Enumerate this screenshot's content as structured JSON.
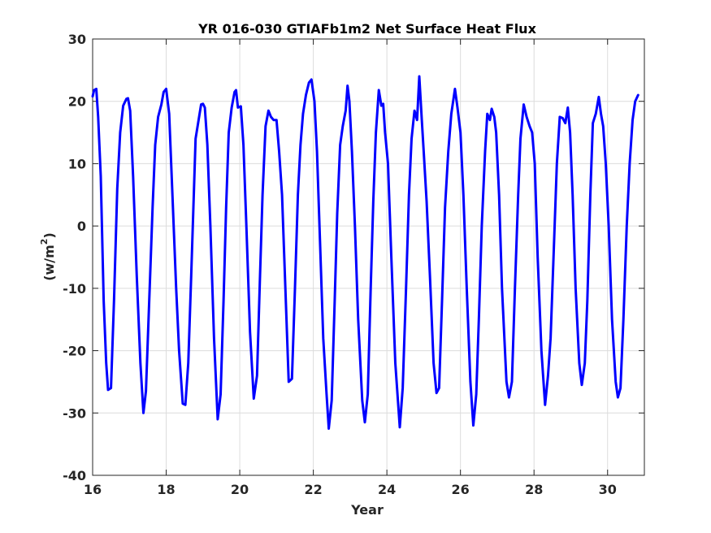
{
  "chart_data": {
    "type": "line",
    "title": "YR 016-030 GTIAFb1m2 Net Surface Heat Flux",
    "xlabel": "Year",
    "ylabel_base": "(w/m",
    "ylabel_sup": "2",
    "ylabel_close": ")",
    "xlim": [
      16,
      31
    ],
    "ylim": [
      -40,
      30
    ],
    "xticks": [
      16,
      18,
      20,
      22,
      24,
      26,
      28,
      30
    ],
    "yticks": [
      -40,
      -30,
      -20,
      -10,
      0,
      10,
      20,
      30
    ],
    "grid": true,
    "line_color": "#0000ff",
    "series": [
      {
        "points": [
          [
            16.0,
            20.8
          ],
          [
            16.04,
            21.8
          ],
          [
            16.1,
            22.0
          ],
          [
            16.15,
            17.5
          ],
          [
            16.22,
            8.0
          ],
          [
            16.3,
            -12.0
          ],
          [
            16.37,
            -22.0
          ],
          [
            16.42,
            -26.3
          ],
          [
            16.5,
            -26.0
          ],
          [
            16.58,
            -12.0
          ],
          [
            16.67,
            6.0
          ],
          [
            16.75,
            15.0
          ],
          [
            16.83,
            19.3
          ],
          [
            16.92,
            20.4
          ],
          [
            16.96,
            20.5
          ],
          [
            17.02,
            18.5
          ],
          [
            17.1,
            8.0
          ],
          [
            17.2,
            -8.0
          ],
          [
            17.3,
            -22.0
          ],
          [
            17.38,
            -30.0
          ],
          [
            17.45,
            -26.5
          ],
          [
            17.55,
            -10.0
          ],
          [
            17.63,
            3.0
          ],
          [
            17.7,
            13.0
          ],
          [
            17.78,
            17.5
          ],
          [
            17.87,
            19.5
          ],
          [
            17.93,
            21.5
          ],
          [
            18.0,
            22.0
          ],
          [
            18.08,
            18.0
          ],
          [
            18.17,
            5.0
          ],
          [
            18.27,
            -10.0
          ],
          [
            18.35,
            -20.0
          ],
          [
            18.45,
            -28.5
          ],
          [
            18.52,
            -28.7
          ],
          [
            18.6,
            -22.0
          ],
          [
            18.68,
            -8.0
          ],
          [
            18.75,
            5.0
          ],
          [
            18.8,
            14.0
          ],
          [
            18.88,
            17.0
          ],
          [
            18.95,
            19.5
          ],
          [
            19.0,
            19.6
          ],
          [
            19.05,
            19.0
          ],
          [
            19.12,
            13.0
          ],
          [
            19.2,
            0.0
          ],
          [
            19.3,
            -18.0
          ],
          [
            19.4,
            -31.0
          ],
          [
            19.48,
            -27.0
          ],
          [
            19.56,
            -12.0
          ],
          [
            19.63,
            3.0
          ],
          [
            19.7,
            15.0
          ],
          [
            19.78,
            19.0
          ],
          [
            19.86,
            21.5
          ],
          [
            19.9,
            21.8
          ],
          [
            19.95,
            19.0
          ],
          [
            20.03,
            19.2
          ],
          [
            20.1,
            13.0
          ],
          [
            20.18,
            0.0
          ],
          [
            20.28,
            -17.0
          ],
          [
            20.38,
            -27.7
          ],
          [
            20.47,
            -24.0
          ],
          [
            20.55,
            -8.0
          ],
          [
            20.62,
            5.0
          ],
          [
            20.7,
            16.0
          ],
          [
            20.78,
            18.5
          ],
          [
            20.85,
            17.5
          ],
          [
            20.92,
            17.0
          ],
          [
            21.0,
            17.0
          ],
          [
            21.07,
            12.0
          ],
          [
            21.15,
            5.0
          ],
          [
            21.24,
            -10.0
          ],
          [
            21.33,
            -25.0
          ],
          [
            21.42,
            -24.5
          ],
          [
            21.5,
            -10.0
          ],
          [
            21.58,
            5.0
          ],
          [
            21.65,
            13.0
          ],
          [
            21.72,
            18.0
          ],
          [
            21.8,
            21.0
          ],
          [
            21.88,
            23.0
          ],
          [
            21.95,
            23.5
          ],
          [
            22.03,
            20.0
          ],
          [
            22.1,
            12.0
          ],
          [
            22.18,
            -2.0
          ],
          [
            22.27,
            -18.0
          ],
          [
            22.36,
            -27.0
          ],
          [
            22.42,
            -32.5
          ],
          [
            22.5,
            -28.0
          ],
          [
            22.58,
            -12.0
          ],
          [
            22.65,
            2.0
          ],
          [
            22.73,
            13.0
          ],
          [
            22.8,
            16.0
          ],
          [
            22.88,
            18.5
          ],
          [
            22.93,
            22.5
          ],
          [
            22.98,
            20.0
          ],
          [
            23.05,
            12.0
          ],
          [
            23.13,
            0.0
          ],
          [
            23.22,
            -15.0
          ],
          [
            23.33,
            -28.0
          ],
          [
            23.4,
            -31.5
          ],
          [
            23.48,
            -27.0
          ],
          [
            23.56,
            -10.0
          ],
          [
            23.63,
            4.0
          ],
          [
            23.7,
            15.0
          ],
          [
            23.78,
            21.8
          ],
          [
            23.85,
            19.3
          ],
          [
            23.9,
            19.6
          ],
          [
            23.95,
            15.0
          ],
          [
            24.03,
            10.0
          ],
          [
            24.12,
            -5.0
          ],
          [
            24.23,
            -22.0
          ],
          [
            24.35,
            -32.3
          ],
          [
            24.43,
            -26.0
          ],
          [
            24.52,
            -10.0
          ],
          [
            24.6,
            5.0
          ],
          [
            24.67,
            14.0
          ],
          [
            24.75,
            18.5
          ],
          [
            24.82,
            17.0
          ],
          [
            24.88,
            24.0
          ],
          [
            24.95,
            17.0
          ],
          [
            25.0,
            12.0
          ],
          [
            25.08,
            4.0
          ],
          [
            25.17,
            -8.0
          ],
          [
            25.27,
            -22.0
          ],
          [
            25.35,
            -26.8
          ],
          [
            25.42,
            -26.0
          ],
          [
            25.5,
            -12.0
          ],
          [
            25.58,
            3.0
          ],
          [
            25.67,
            12.0
          ],
          [
            25.75,
            18.0
          ],
          [
            25.85,
            22.0
          ],
          [
            25.92,
            19.0
          ],
          [
            26.0,
            15.0
          ],
          [
            26.08,
            5.0
          ],
          [
            26.17,
            -10.0
          ],
          [
            26.27,
            -25.0
          ],
          [
            26.35,
            -32.0
          ],
          [
            26.43,
            -27.0
          ],
          [
            26.5,
            -15.0
          ],
          [
            26.58,
            0.0
          ],
          [
            26.67,
            12.0
          ],
          [
            26.73,
            18.0
          ],
          [
            26.8,
            17.0
          ],
          [
            26.85,
            18.8
          ],
          [
            26.92,
            17.5
          ],
          [
            26.97,
            15.0
          ],
          [
            27.05,
            5.0
          ],
          [
            27.13,
            -10.0
          ],
          [
            27.25,
            -25.0
          ],
          [
            27.32,
            -27.5
          ],
          [
            27.4,
            -25.0
          ],
          [
            27.48,
            -10.0
          ],
          [
            27.57,
            5.0
          ],
          [
            27.63,
            14.0
          ],
          [
            27.72,
            19.5
          ],
          [
            27.8,
            17.5
          ],
          [
            27.88,
            16.0
          ],
          [
            27.95,
            15.0
          ],
          [
            28.02,
            10.0
          ],
          [
            28.1,
            -5.0
          ],
          [
            28.2,
            -20.0
          ],
          [
            28.3,
            -28.7
          ],
          [
            28.38,
            -24.0
          ],
          [
            28.45,
            -18.0
          ],
          [
            28.53,
            -5.0
          ],
          [
            28.62,
            10.0
          ],
          [
            28.7,
            17.5
          ],
          [
            28.78,
            17.3
          ],
          [
            28.85,
            16.5
          ],
          [
            28.92,
            19.0
          ],
          [
            28.98,
            15.0
          ],
          [
            29.05,
            5.0
          ],
          [
            29.13,
            -10.0
          ],
          [
            29.23,
            -22.0
          ],
          [
            29.3,
            -25.5
          ],
          [
            29.38,
            -22.0
          ],
          [
            29.45,
            -12.0
          ],
          [
            29.53,
            5.0
          ],
          [
            29.6,
            16.5
          ],
          [
            29.68,
            18.0
          ],
          [
            29.76,
            20.7
          ],
          [
            29.82,
            18.0
          ],
          [
            29.88,
            16.0
          ],
          [
            29.95,
            10.0
          ],
          [
            30.03,
            0.0
          ],
          [
            30.12,
            -15.0
          ],
          [
            30.22,
            -25.0
          ],
          [
            30.28,
            -27.5
          ],
          [
            30.35,
            -26.0
          ],
          [
            30.43,
            -15.0
          ],
          [
            30.52,
            0.0
          ],
          [
            30.6,
            10.0
          ],
          [
            30.68,
            17.0
          ],
          [
            30.75,
            20.0
          ],
          [
            30.83,
            21.0
          ]
        ]
      }
    ]
  }
}
